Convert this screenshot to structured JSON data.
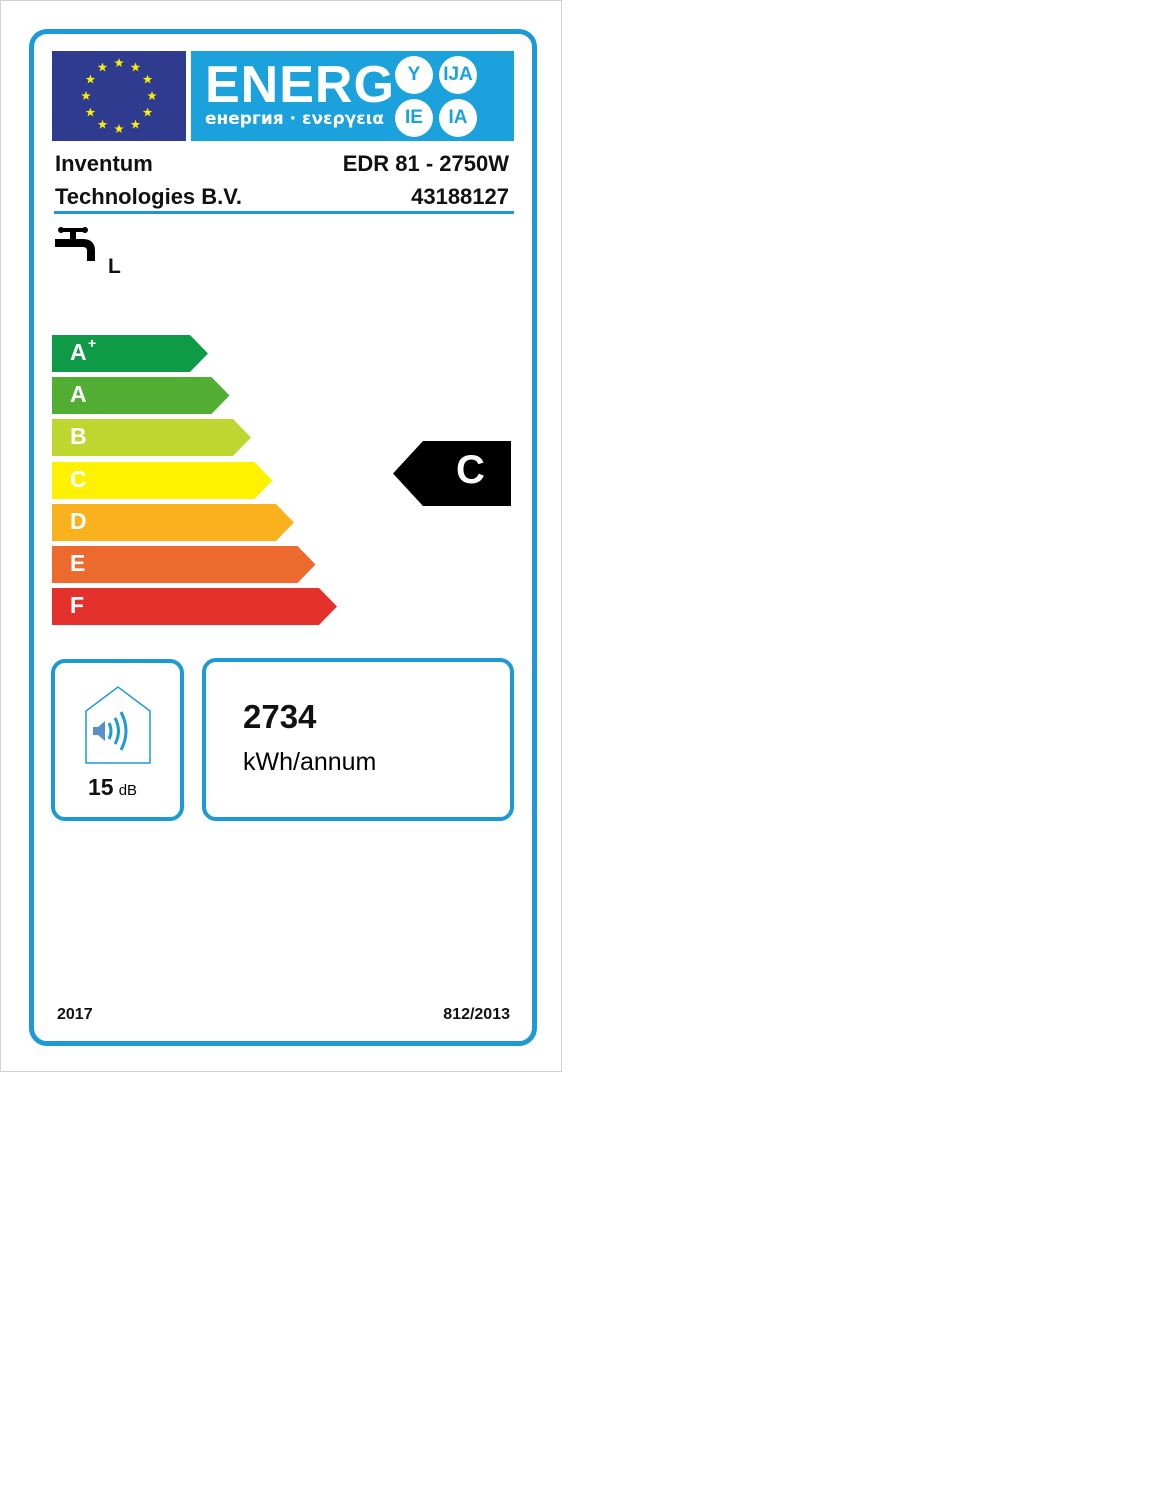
{
  "header": {
    "energy_word": "ENERG",
    "subtitle": "енергия · ενεργεια",
    "suffixes": [
      "Y",
      "IJA",
      "IE",
      "IA"
    ]
  },
  "supplier": {
    "line1": "Inventum",
    "line2": "Technologies B.V."
  },
  "model": {
    "name": "EDR 81 - 2750W",
    "id": "43188127"
  },
  "load_profile": {
    "icon": "tap-icon",
    "value": "L"
  },
  "scale": [
    {
      "label": "A",
      "sup": "+",
      "color": "#0f9a48"
    },
    {
      "label": "A",
      "sup": "",
      "color": "#52ae32"
    },
    {
      "label": "B",
      "sup": "",
      "color": "#bed630"
    },
    {
      "label": "C",
      "sup": "",
      "color": "#fff200"
    },
    {
      "label": "D",
      "sup": "",
      "color": "#f9b21d"
    },
    {
      "label": "E",
      "sup": "",
      "color": "#ec6a2d"
    },
    {
      "label": "F",
      "sup": "",
      "color": "#e4312b"
    }
  ],
  "rating": {
    "class": "C",
    "color": "#000000"
  },
  "noise": {
    "value": "15",
    "unit": "dB",
    "icon": "sound-house-icon"
  },
  "consumption": {
    "value": "2734",
    "unit": "kWh/annum"
  },
  "footer": {
    "year": "2017",
    "regulation": "812/2013"
  },
  "colors": {
    "frame": "#1b9ad6",
    "flag": "#2e3b8f",
    "energy_bg": "#1ba1db"
  }
}
